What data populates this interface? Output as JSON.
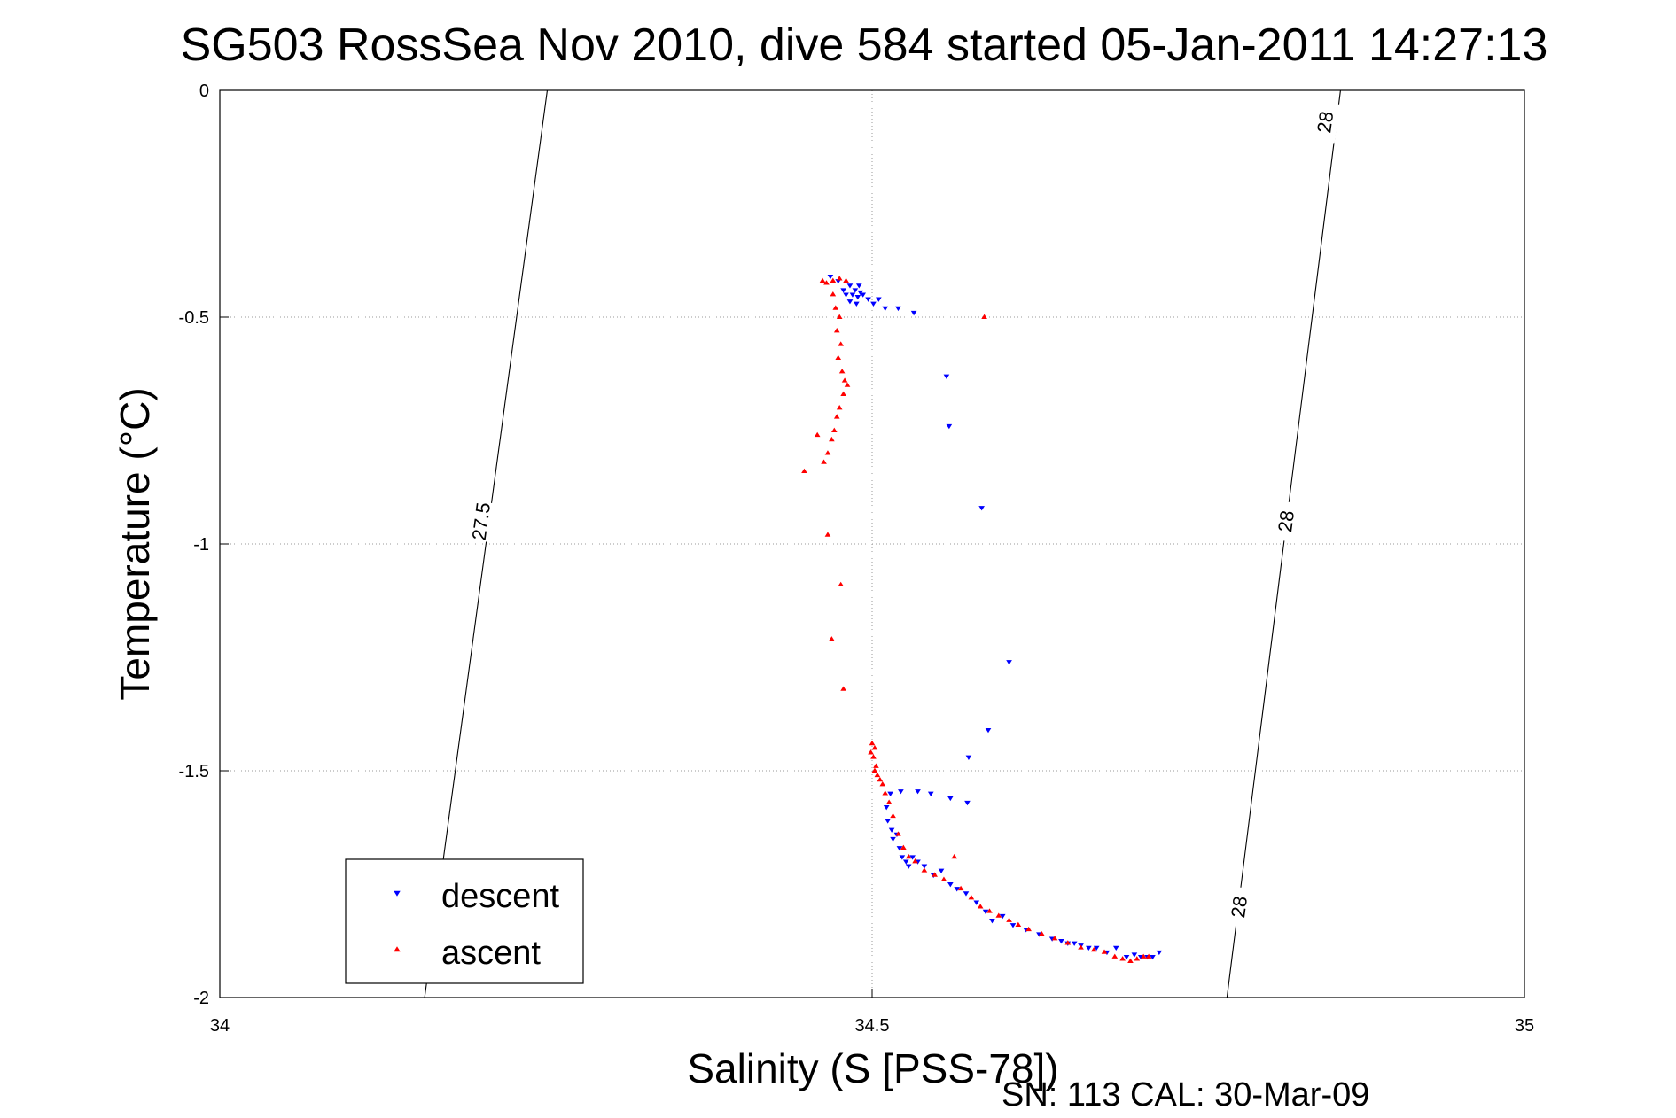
{
  "chart_data": {
    "type": "scatter",
    "title": "SG503 RossSea Nov 2010, dive 584 started 05-Jan-2011 14:27:13",
    "xlabel": "Salinity (S [PSS-78])",
    "ylabel": "Temperature (°C)",
    "xlim": [
      34,
      35
    ],
    "ylim": [
      -2,
      0
    ],
    "xticks": [
      34,
      34.5,
      35
    ],
    "xtick_labels": [
      "34",
      "34.5",
      "35"
    ],
    "yticks": [
      0,
      -0.5,
      -1,
      -1.5,
      -2
    ],
    "ytick_labels": [
      "0",
      "-0.5",
      "-1",
      "-1.5",
      "-2"
    ],
    "grid": true,
    "legend_position": "bottom-left",
    "footer": "SN: 113  CAL: 30-Mar-09",
    "density_contours": [
      {
        "label": "27.5",
        "points": [
          [
            34.251,
            0.0
          ],
          [
            34.157,
            -2.0
          ]
        ],
        "label_at": [
          34.2,
          -0.95
        ]
      },
      {
        "label": "28",
        "points": [
          [
            34.859,
            0.0
          ],
          [
            34.772,
            -2.0
          ]
        ],
        "label_at": [
          34.847,
          -0.07
        ]
      },
      {
        "label": "28",
        "label_at": [
          34.817,
          -0.95
        ]
      },
      {
        "label": "28",
        "label_at": [
          34.781,
          -1.8
        ]
      }
    ],
    "series": [
      {
        "name": "descent",
        "color": "#0000ff",
        "marker": "triangle-down",
        "points": [
          [
            34.48,
            -0.45
          ],
          [
            34.483,
            -0.43
          ],
          [
            34.485,
            -0.45
          ],
          [
            34.487,
            -0.44
          ],
          [
            34.489,
            -0.455
          ],
          [
            34.491,
            -0.445
          ],
          [
            34.493,
            -0.45
          ],
          [
            34.497,
            -0.46
          ],
          [
            34.501,
            -0.47
          ],
          [
            34.505,
            -0.46
          ],
          [
            34.51,
            -0.48
          ],
          [
            34.52,
            -0.48
          ],
          [
            34.532,
            -0.49
          ],
          [
            34.468,
            -0.41
          ],
          [
            34.474,
            -0.42
          ],
          [
            34.478,
            -0.44
          ],
          [
            34.483,
            -0.465
          ],
          [
            34.488,
            -0.47
          ],
          [
            34.49,
            -0.43
          ],
          [
            34.557,
            -0.63
          ],
          [
            34.559,
            -0.74
          ],
          [
            34.584,
            -0.92
          ],
          [
            34.605,
            -1.26
          ],
          [
            34.589,
            -1.41
          ],
          [
            34.574,
            -1.47
          ],
          [
            34.573,
            -1.57
          ],
          [
            34.56,
            -1.56
          ],
          [
            34.545,
            -1.55
          ],
          [
            34.535,
            -1.545
          ],
          [
            34.522,
            -1.545
          ],
          [
            34.514,
            -1.55
          ],
          [
            34.511,
            -1.58
          ],
          [
            34.512,
            -1.61
          ],
          [
            34.515,
            -1.63
          ],
          [
            34.516,
            -1.65
          ],
          [
            34.519,
            -1.64
          ],
          [
            34.521,
            -1.67
          ],
          [
            34.523,
            -1.69
          ],
          [
            34.526,
            -1.7
          ],
          [
            34.528,
            -1.71
          ],
          [
            34.531,
            -1.69
          ],
          [
            34.535,
            -1.7
          ],
          [
            34.54,
            -1.71
          ],
          [
            34.547,
            -1.73
          ],
          [
            34.553,
            -1.72
          ],
          [
            34.56,
            -1.75
          ],
          [
            34.565,
            -1.76
          ],
          [
            34.572,
            -1.77
          ],
          [
            34.58,
            -1.79
          ],
          [
            34.587,
            -1.81
          ],
          [
            34.592,
            -1.83
          ],
          [
            34.6,
            -1.82
          ],
          [
            34.608,
            -1.84
          ],
          [
            34.618,
            -1.85
          ],
          [
            34.628,
            -1.86
          ],
          [
            34.638,
            -1.87
          ],
          [
            34.645,
            -1.875
          ],
          [
            34.65,
            -1.88
          ],
          [
            34.655,
            -1.88
          ],
          [
            34.66,
            -1.885
          ],
          [
            34.666,
            -1.89
          ],
          [
            34.672,
            -1.89
          ],
          [
            34.68,
            -1.9
          ],
          [
            34.687,
            -1.89
          ],
          [
            34.695,
            -1.91
          ],
          [
            34.701,
            -1.905
          ],
          [
            34.706,
            -1.91
          ],
          [
            34.711,
            -1.91
          ],
          [
            34.715,
            -1.91
          ],
          [
            34.72,
            -1.9
          ]
        ]
      },
      {
        "name": "ascent",
        "color": "#ff0000",
        "marker": "triangle-up",
        "points": [
          [
            34.462,
            -0.42
          ],
          [
            34.465,
            -0.425
          ],
          [
            34.47,
            -0.42
          ],
          [
            34.475,
            -0.415
          ],
          [
            34.48,
            -0.42
          ],
          [
            34.47,
            -0.45
          ],
          [
            34.472,
            -0.48
          ],
          [
            34.475,
            -0.5
          ],
          [
            34.473,
            -0.53
          ],
          [
            34.476,
            -0.56
          ],
          [
            34.474,
            -0.59
          ],
          [
            34.477,
            -0.62
          ],
          [
            34.479,
            -0.64
          ],
          [
            34.481,
            -0.65
          ],
          [
            34.478,
            -0.67
          ],
          [
            34.475,
            -0.7
          ],
          [
            34.473,
            -0.72
          ],
          [
            34.471,
            -0.75
          ],
          [
            34.469,
            -0.77
          ],
          [
            34.466,
            -0.8
          ],
          [
            34.463,
            -0.82
          ],
          [
            34.458,
            -0.76
          ],
          [
            34.448,
            -0.84
          ],
          [
            34.466,
            -0.98
          ],
          [
            34.476,
            -1.09
          ],
          [
            34.469,
            -1.21
          ],
          [
            34.478,
            -1.32
          ],
          [
            34.586,
            -0.5
          ],
          [
            34.5,
            -1.44
          ],
          [
            34.502,
            -1.45
          ],
          [
            34.499,
            -1.46
          ],
          [
            34.501,
            -1.47
          ],
          [
            34.503,
            -1.49
          ],
          [
            34.502,
            -1.5
          ],
          [
            34.504,
            -1.51
          ],
          [
            34.506,
            -1.52
          ],
          [
            34.508,
            -1.53
          ],
          [
            34.51,
            -1.55
          ],
          [
            34.513,
            -1.57
          ],
          [
            34.516,
            -1.6
          ],
          [
            34.52,
            -1.64
          ],
          [
            34.524,
            -1.67
          ],
          [
            34.528,
            -1.69
          ],
          [
            34.533,
            -1.7
          ],
          [
            34.54,
            -1.72
          ],
          [
            34.548,
            -1.73
          ],
          [
            34.555,
            -1.74
          ],
          [
            34.563,
            -1.69
          ],
          [
            34.568,
            -1.76
          ],
          [
            34.576,
            -1.78
          ],
          [
            34.583,
            -1.8
          ],
          [
            34.59,
            -1.81
          ],
          [
            34.597,
            -1.82
          ],
          [
            34.605,
            -1.83
          ],
          [
            34.612,
            -1.84
          ],
          [
            34.62,
            -1.85
          ],
          [
            34.63,
            -1.86
          ],
          [
            34.64,
            -1.87
          ],
          [
            34.65,
            -1.88
          ],
          [
            34.66,
            -1.89
          ],
          [
            34.67,
            -1.895
          ],
          [
            34.678,
            -1.9
          ],
          [
            34.686,
            -1.91
          ],
          [
            34.692,
            -1.915
          ],
          [
            34.698,
            -1.92
          ],
          [
            34.703,
            -1.915
          ],
          [
            34.708,
            -1.91
          ],
          [
            34.712,
            -1.91
          ]
        ]
      }
    ]
  }
}
